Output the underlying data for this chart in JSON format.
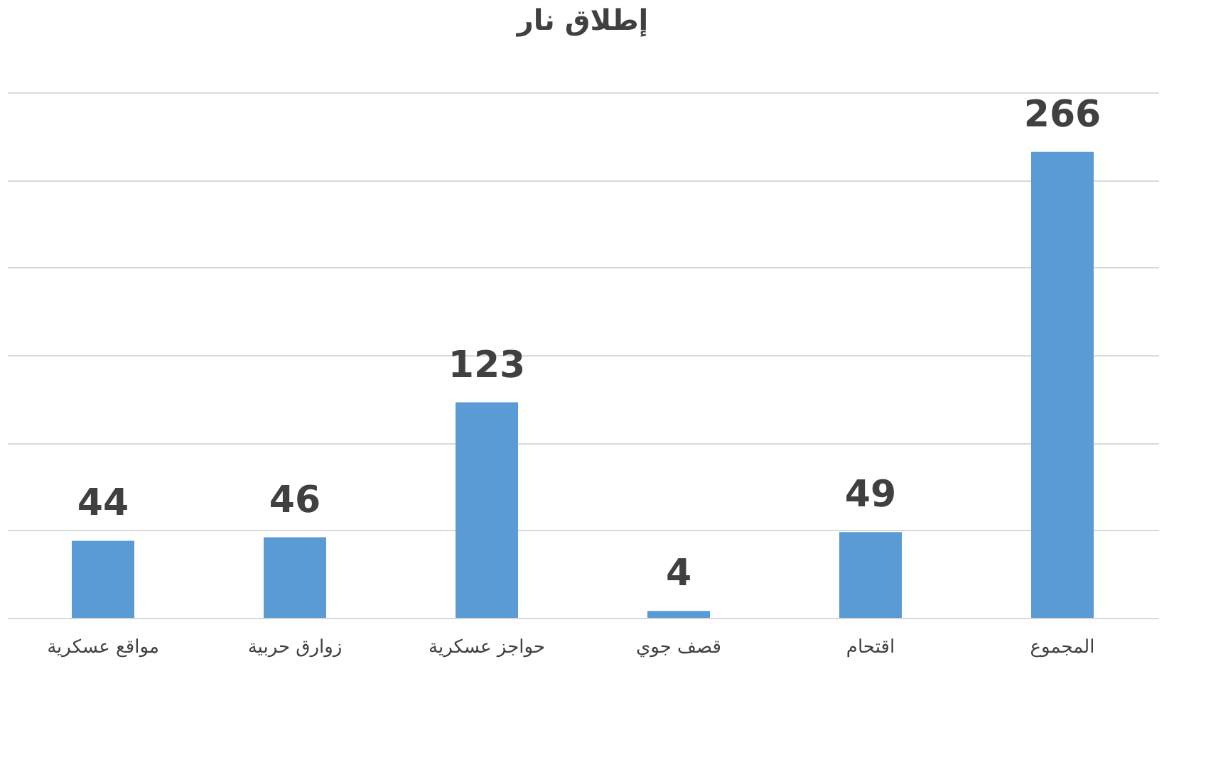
{
  "chart_data": {
    "type": "bar",
    "title": "إطلاق نار",
    "categories": [
      "مواقع عسكرية",
      "زوارق حربية",
      "حواجز عسكرية",
      "قصف جوي",
      "اقتحام",
      "المجموع"
    ],
    "values": [
      44,
      46,
      123,
      4,
      49,
      266
    ],
    "color": "#5b9bd5",
    "ylim": [
      0,
      300
    ],
    "yticks": [
      0,
      50,
      100,
      150,
      200,
      250,
      300
    ],
    "tick_labels": "x",
    "grid": "y",
    "data_labels": true
  }
}
